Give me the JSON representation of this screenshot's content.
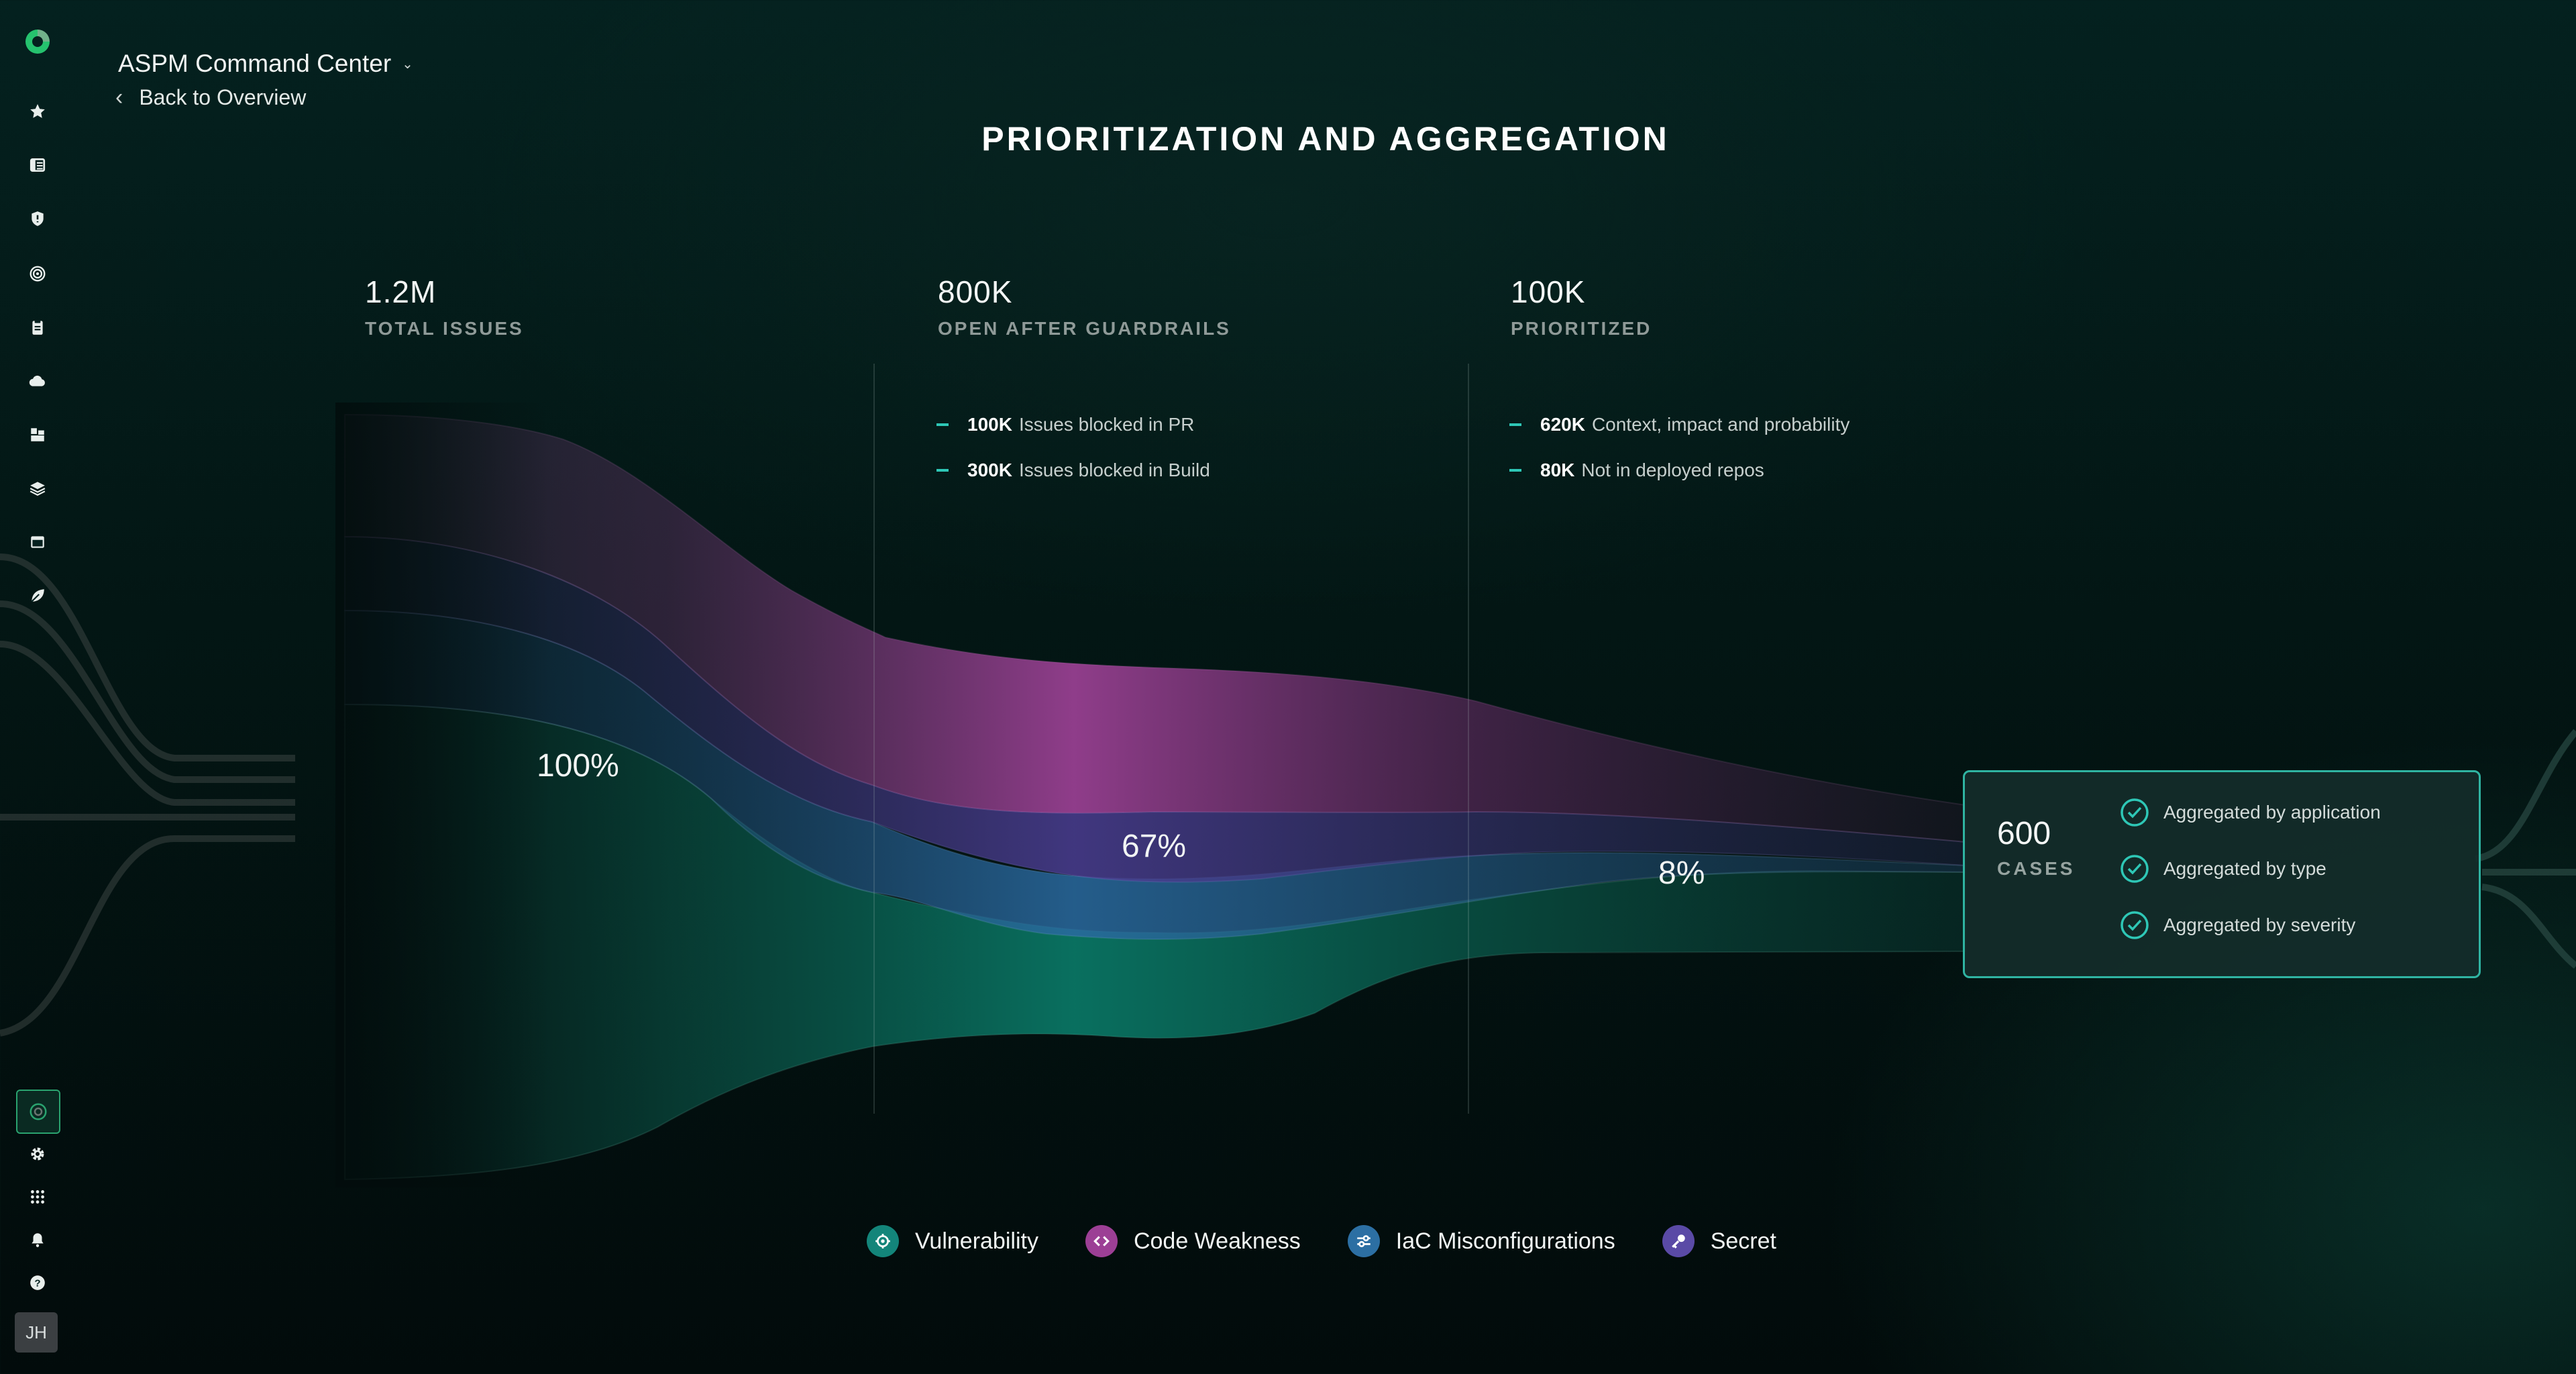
{
  "sidebar": {
    "avatar_initials": "JH",
    "nav_icons": [
      "star-icon",
      "list-icon",
      "shield-alert-icon",
      "target-icon",
      "clipboard-icon",
      "cloud-icon",
      "blocks-icon",
      "layers-icon",
      "window-icon",
      "leaf-icon"
    ],
    "bottom_icons": [
      "status-indicator-icon",
      "gear-icon",
      "apps-grid-icon",
      "bell-icon",
      "help-icon"
    ]
  },
  "header": {
    "app_title": "ASPM Command Center",
    "back_label": "Back to Overview"
  },
  "page_title": "PRIORITIZATION AND AGGREGATION",
  "stages": [
    {
      "value": "1.2M",
      "label": "TOTAL ISSUES"
    },
    {
      "value": "800K",
      "label": "OPEN AFTER GUARDRAILS"
    },
    {
      "value": "100K",
      "label": "PRIORITIZED"
    }
  ],
  "guardrails_bullets": [
    {
      "value": "100K",
      "text": "Issues blocked in PR"
    },
    {
      "value": "300K",
      "text": "Issues blocked in Build"
    }
  ],
  "prioritized_bullets": [
    {
      "value": "620K",
      "text": "Context, impact and probability"
    },
    {
      "value": "80K",
      "text": "Not in deployed repos"
    }
  ],
  "percentages": [
    "100%",
    "67%",
    "8%"
  ],
  "cases": {
    "value": "600",
    "label": "CASES",
    "items": [
      "Aggregated by application",
      "Aggregated by type",
      "Aggregated by severity"
    ]
  },
  "legend": [
    {
      "label": "Vulnerability",
      "color": "#13857a",
      "icon": "target-icon"
    },
    {
      "label": "Code Weakness",
      "color": "#9c3f95",
      "icon": "code-icon"
    },
    {
      "label": "IaC Misconfigurations",
      "color": "#2c6fa3",
      "icon": "sliders-icon"
    },
    {
      "label": "Secret",
      "color": "#5a4aa6",
      "icon": "key-icon"
    }
  ],
  "colors": {
    "accent": "#2ec7b6",
    "vulnerability": "#0c7a68",
    "code_weakness": "#a0439a",
    "iac": "#2b6d9e",
    "secret": "#4b3d8f"
  }
}
